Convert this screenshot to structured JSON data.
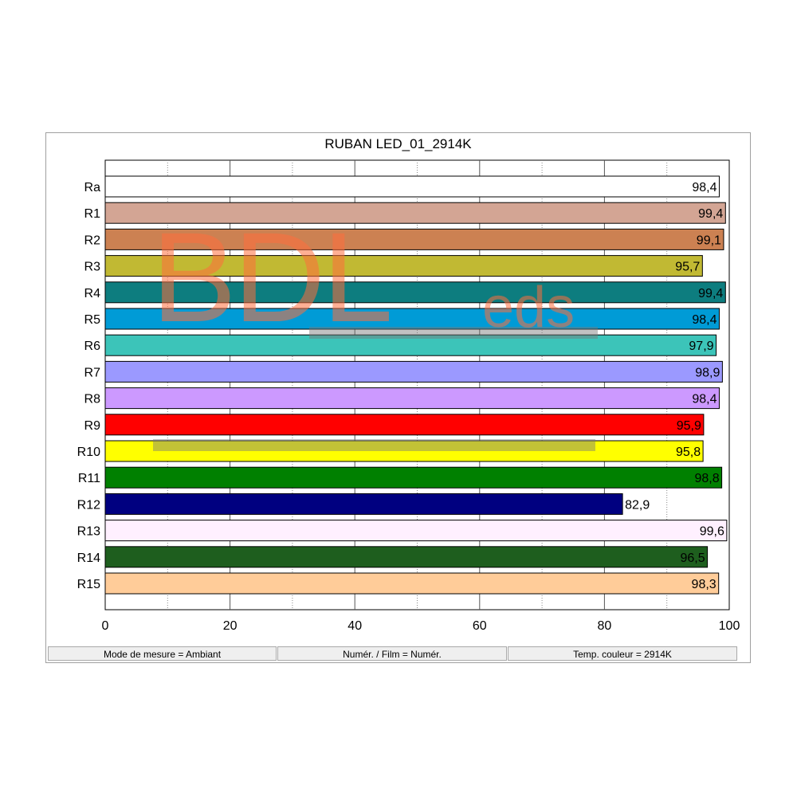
{
  "chart_data": {
    "type": "bar",
    "orientation": "horizontal",
    "title": "RUBAN LED_01_2914K",
    "categories": [
      "Ra",
      "R1",
      "R2",
      "R3",
      "R4",
      "R5",
      "R6",
      "R7",
      "R8",
      "R9",
      "R10",
      "R11",
      "R12",
      "R13",
      "R14",
      "R15"
    ],
    "values": [
      98.4,
      99.4,
      99.1,
      95.7,
      99.4,
      98.4,
      97.9,
      98.9,
      98.4,
      95.9,
      95.8,
      98.8,
      82.9,
      99.6,
      96.5,
      98.3
    ],
    "value_labels": [
      "98,4",
      "99,4",
      "99,1",
      "95,7",
      "99,4",
      "98,4",
      "97,9",
      "98,9",
      "98,4",
      "95,9",
      "95,8",
      "98,8",
      "82,9",
      "99,6",
      "96,5",
      "98,3"
    ],
    "colors": [
      "#ffffff",
      "#d3a594",
      "#cc8152",
      "#c1b933",
      "#0d7d7f",
      "#009bd6",
      "#3cc4b9",
      "#9b99ff",
      "#cc99ff",
      "#ff0000",
      "#ffff00",
      "#008000",
      "#000080",
      "#fff0ff",
      "#1e5e1e",
      "#ffcc99"
    ],
    "xlim": [
      0,
      100
    ],
    "xticks": [
      0,
      20,
      40,
      60,
      80,
      100
    ],
    "xlabel": "",
    "ylabel": "",
    "grid": true
  },
  "statusbar": {
    "mode": "Mode de mesure = Ambiant",
    "numer": "Numér. / Film = Numér.",
    "temp": "Temp. couleur = 2914K"
  },
  "watermark": {
    "main": "BDL",
    "sub": "eds"
  }
}
